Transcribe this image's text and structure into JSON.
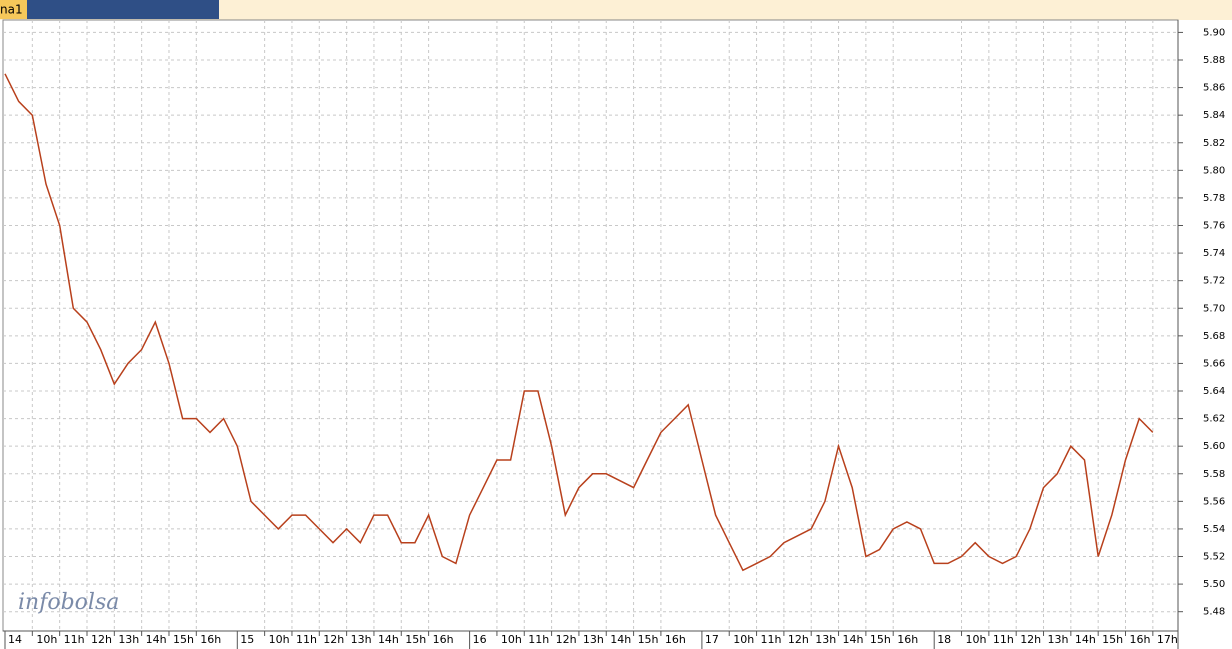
{
  "tab_label": "na1",
  "chart_data": {
    "type": "line",
    "watermark": "infobolsa",
    "categories": [
      "14",
      null,
      "10h",
      null,
      "11h",
      null,
      "12h",
      null,
      "13h",
      null,
      "14h",
      null,
      "15h",
      null,
      "16h",
      null,
      null,
      "15",
      null,
      "10h",
      null,
      "11h",
      null,
      "12h",
      null,
      "13h",
      null,
      "14h",
      null,
      "15h",
      null,
      "16h",
      null,
      null,
      "16",
      null,
      "10h",
      null,
      "11h",
      null,
      "12h",
      null,
      "13h",
      null,
      "14h",
      null,
      "15h",
      null,
      "16h",
      null,
      null,
      "17",
      null,
      "10h",
      null,
      "11h",
      null,
      "12h",
      null,
      "13h",
      null,
      "14h",
      null,
      "15h",
      null,
      "16h",
      null,
      null,
      "18",
      null,
      "10h",
      null,
      "11h",
      null,
      "12h",
      null,
      "13h",
      null,
      "14h",
      null,
      "15h",
      null,
      "16h",
      null,
      "17h"
    ],
    "series": [
      {
        "name": "price",
        "color": "#b8401c",
        "values": [
          5.87,
          5.85,
          5.84,
          5.79,
          5.76,
          5.7,
          5.69,
          5.67,
          5.645,
          5.66,
          5.67,
          5.69,
          5.66,
          5.62,
          5.62,
          5.61,
          5.62,
          5.6,
          5.56,
          5.55,
          5.54,
          5.55,
          5.55,
          5.54,
          5.53,
          5.54,
          5.53,
          5.55,
          5.55,
          5.53,
          5.53,
          5.55,
          5.52,
          5.515,
          5.55,
          5.57,
          5.59,
          5.59,
          5.64,
          5.64,
          5.6,
          5.55,
          5.57,
          5.58,
          5.58,
          5.575,
          5.57,
          5.59,
          5.61,
          5.62,
          5.63,
          5.59,
          5.55,
          5.53,
          5.51,
          5.515,
          5.52,
          5.53,
          5.535,
          5.54,
          5.56,
          5.6,
          5.57,
          5.52,
          5.525,
          5.54,
          5.545,
          5.54,
          5.515,
          5.515,
          5.52,
          5.53,
          5.52,
          5.515,
          5.52,
          5.54,
          5.57,
          5.58,
          5.6,
          5.59,
          5.52,
          5.55,
          5.59,
          5.62,
          5.61
        ]
      }
    ],
    "ylim": [
      5.466,
      5.909
    ],
    "yticks": [
      {
        "value": 5.9,
        "label": "5.90"
      },
      5.88,
      5.86,
      5.84,
      5.82,
      {
        "value": 5.8,
        "label": "5.80"
      },
      5.78,
      5.76,
      5.74,
      5.72,
      {
        "value": 5.7,
        "label": "5.70"
      },
      5.68,
      5.66,
      5.64,
      5.62,
      {
        "value": 5.6,
        "label": "5.60"
      },
      5.58,
      5.56,
      5.54,
      5.52,
      {
        "value": 5.5,
        "label": "5.50"
      },
      5.48
    ],
    "grid": true
  }
}
